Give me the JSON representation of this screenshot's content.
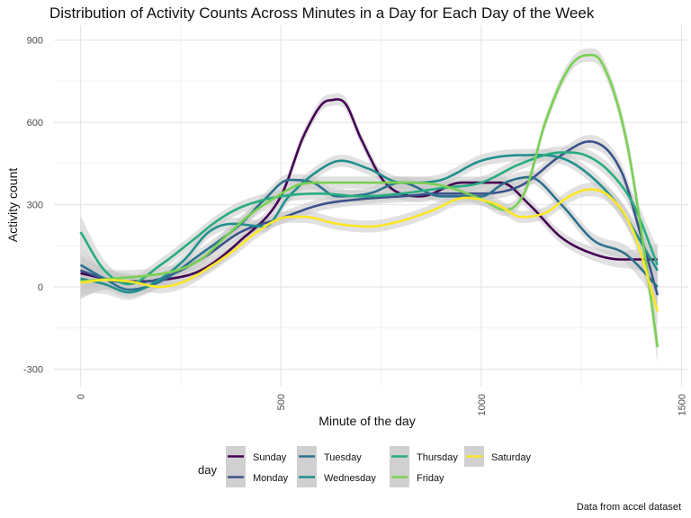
{
  "chart_data": {
    "type": "line",
    "title": "Distribution of Activity Counts Across Minutes in a Day for Each Day of the Week",
    "xlabel": "Minute of the day",
    "ylabel": "Activity count",
    "caption": "Data from accel dataset",
    "legend_title": "day",
    "legend_position": "bottom",
    "xlim": [
      0,
      1440
    ],
    "ylim": [
      -350,
      950
    ],
    "x_ticks": [
      0,
      500,
      1000,
      1500
    ],
    "x_tick_labels": [
      "0",
      "500",
      "1000",
      "1500"
    ],
    "y_ticks": [
      -300,
      0,
      300,
      600,
      900
    ],
    "y_tick_labels": [
      "-300",
      "0",
      "300",
      "600",
      "900"
    ],
    "grid": true,
    "confidence_band": true,
    "colors": {
      "band": "#c8c8c8",
      "grid_major": "#e6e6e6",
      "grid_minor": "#f2f2f2",
      "legend_key_bg": "#d0d0d0"
    },
    "series": [
      {
        "name": "Sunday",
        "color": "#440154",
        "x": [
          0,
          60,
          120,
          200,
          300,
          400,
          500,
          560,
          620,
          660,
          700,
          760,
          850,
          950,
          1050,
          1120,
          1200,
          1280,
          1350,
          1440
        ],
        "y": [
          50,
          30,
          20,
          25,
          60,
          170,
          330,
          560,
          680,
          670,
          540,
          380,
          330,
          380,
          380,
          300,
          180,
          120,
          100,
          100
        ]
      },
      {
        "name": "Monday",
        "color": "#3b528b",
        "x": [
          0,
          60,
          120,
          200,
          300,
          400,
          500,
          600,
          700,
          800,
          900,
          1000,
          1100,
          1200,
          1270,
          1350,
          1400,
          1440
        ],
        "y": [
          60,
          30,
          15,
          30,
          100,
          200,
          250,
          300,
          320,
          330,
          340,
          340,
          370,
          480,
          530,
          420,
          180,
          -30
        ]
      },
      {
        "name": "Tuesday",
        "color": "#2c728e",
        "x": [
          0,
          60,
          120,
          200,
          300,
          400,
          460,
          520,
          580,
          640,
          720,
          800,
          900,
          1000,
          1060,
          1120,
          1200,
          1280,
          1360,
          1440
        ],
        "y": [
          80,
          30,
          -10,
          20,
          120,
          230,
          320,
          390,
          380,
          330,
          340,
          380,
          330,
          330,
          380,
          400,
          300,
          170,
          120,
          0
        ]
      },
      {
        "name": "Wednesday",
        "color": "#21908d",
        "x": [
          0,
          60,
          120,
          200,
          260,
          320,
          380,
          460,
          520,
          600,
          650,
          720,
          800,
          900,
          1000,
          1100,
          1200,
          1260,
          1340,
          1440
        ],
        "y": [
          30,
          10,
          -20,
          30,
          100,
          200,
          230,
          220,
          330,
          430,
          460,
          430,
          380,
          390,
          460,
          480,
          470,
          420,
          300,
          60
        ]
      },
      {
        "name": "Thursday",
        "color": "#27ad81",
        "x": [
          0,
          60,
          120,
          200,
          280,
          340,
          400,
          500,
          600,
          700,
          800,
          900,
          1000,
          1100,
          1200,
          1260,
          1320,
          1380,
          1440
        ],
        "y": [
          200,
          60,
          10,
          80,
          170,
          240,
          290,
          330,
          340,
          330,
          340,
          360,
          380,
          450,
          490,
          480,
          420,
          300,
          80
        ]
      },
      {
        "name": "Friday",
        "color": "#7ad151",
        "x": [
          0,
          80,
          160,
          240,
          300,
          360,
          420,
          480,
          540,
          600,
          700,
          800,
          900,
          1000,
          1060,
          1110,
          1160,
          1220,
          1265,
          1300,
          1360,
          1410,
          1440
        ],
        "y": [
          20,
          30,
          40,
          60,
          100,
          180,
          260,
          320,
          370,
          380,
          380,
          380,
          370,
          320,
          280,
          350,
          600,
          800,
          845,
          820,
          550,
          100,
          -220
        ]
      },
      {
        "name": "Saturday",
        "color": "#fde725",
        "x": [
          0,
          60,
          120,
          200,
          260,
          320,
          380,
          440,
          500,
          560,
          640,
          720,
          800,
          880,
          960,
          1040,
          1100,
          1160,
          1220,
          1270,
          1320,
          1380,
          1440
        ],
        "y": [
          15,
          25,
          20,
          0,
          20,
          70,
          130,
          200,
          250,
          255,
          230,
          220,
          240,
          280,
          325,
          300,
          255,
          270,
          330,
          355,
          330,
          200,
          -90
        ]
      }
    ]
  }
}
